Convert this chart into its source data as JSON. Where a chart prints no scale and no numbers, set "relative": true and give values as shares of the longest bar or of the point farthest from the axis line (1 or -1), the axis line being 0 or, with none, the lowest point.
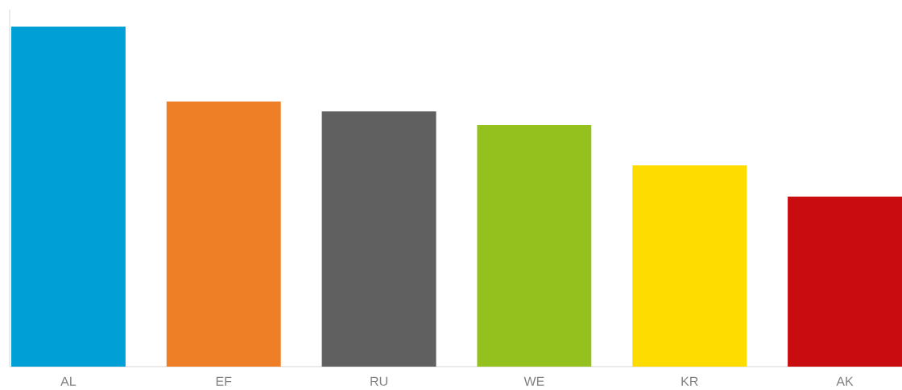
{
  "chart_data": {
    "type": "bar",
    "relative": true,
    "categories": [
      "AL",
      "EF",
      "RU",
      "WE",
      "KR",
      "AK"
    ],
    "values": [
      1,
      0.78,
      0.751,
      0.711,
      0.592,
      0.5
    ],
    "colors": [
      "#009fd6",
      "#ef7f27",
      "#606060",
      "#95c11f",
      "#ffdc00",
      "#c80c10"
    ]
  }
}
